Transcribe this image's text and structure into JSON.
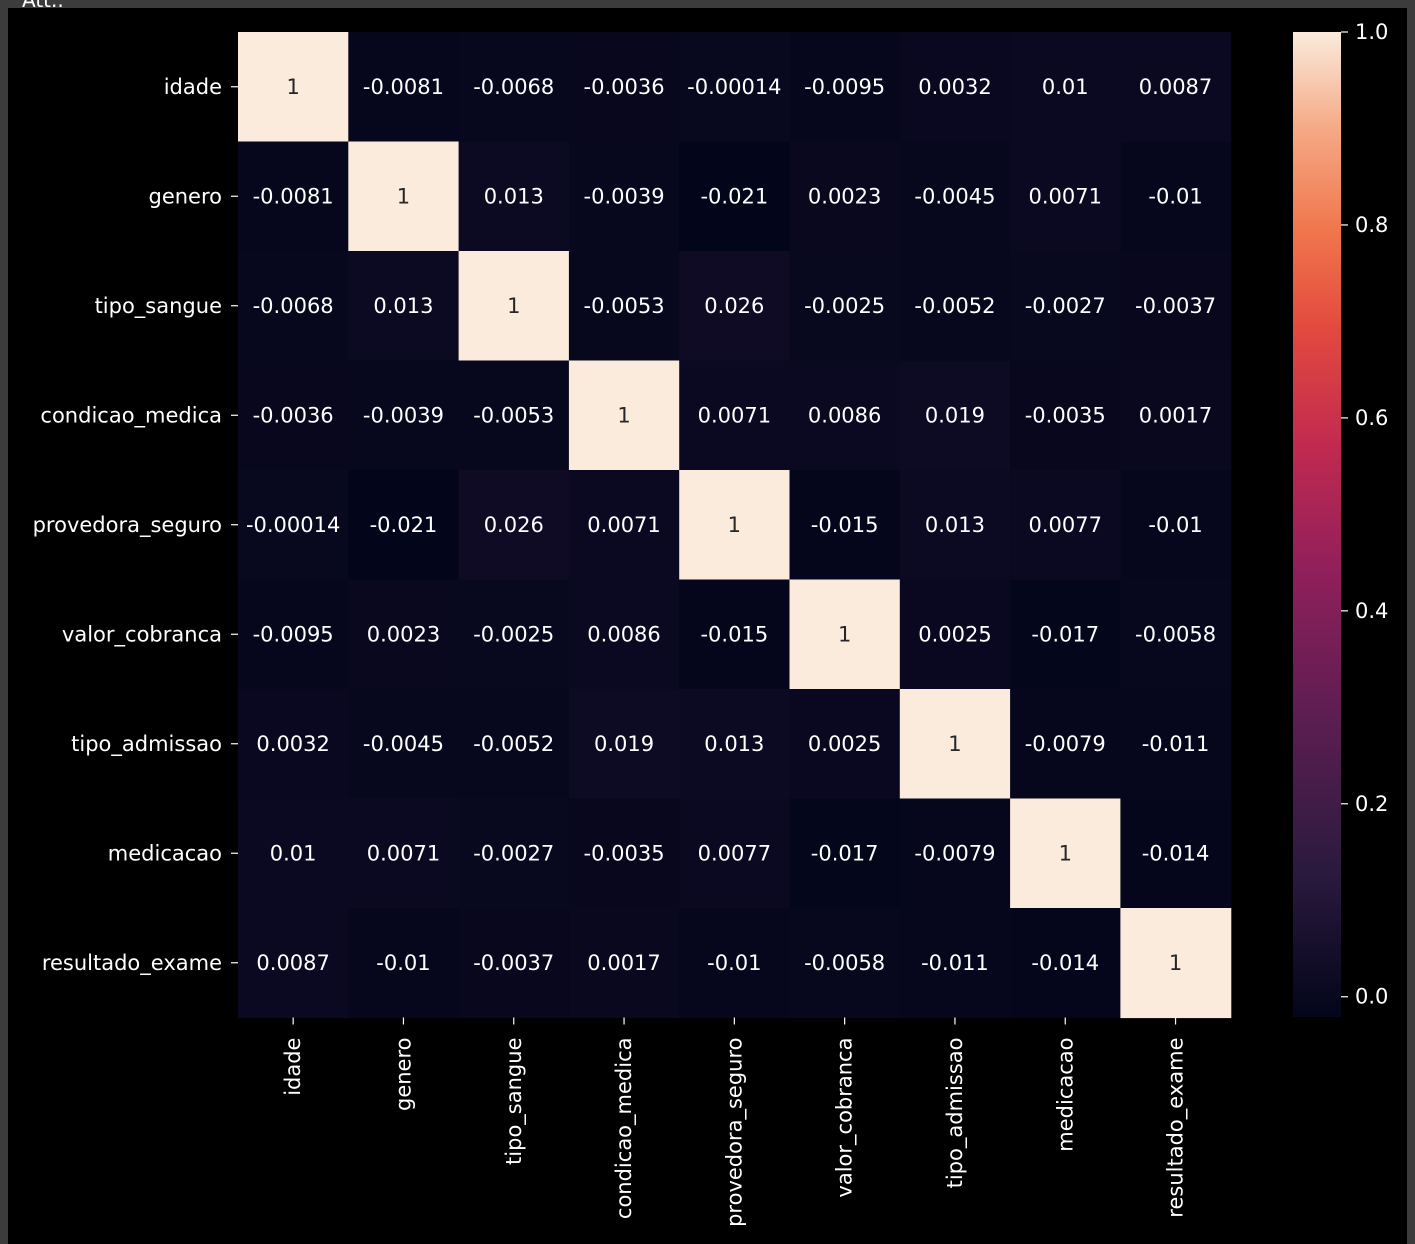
{
  "window": {
    "caption": "Att.."
  },
  "chart_data": {
    "type": "heatmap",
    "title": "",
    "xlabel": "",
    "ylabel": "",
    "x_labels": [
      "idade",
      "genero",
      "tipo_sangue",
      "condicao_medica",
      "provedora_seguro",
      "valor_cobranca",
      "tipo_admissao",
      "medicacao",
      "resultado_exame"
    ],
    "y_labels": [
      "idade",
      "genero",
      "tipo_sangue",
      "condicao_medica",
      "provedora_seguro",
      "valor_cobranca",
      "tipo_admissao",
      "medicacao",
      "resultado_exame"
    ],
    "matrix": [
      [
        1,
        -0.0081,
        -0.0068,
        -0.0036,
        -0.00014,
        -0.0095,
        0.0032,
        0.01,
        0.0087
      ],
      [
        -0.0081,
        1,
        0.013,
        -0.0039,
        -0.021,
        0.0023,
        -0.0045,
        0.0071,
        -0.01
      ],
      [
        -0.0068,
        0.013,
        1,
        -0.0053,
        0.026,
        -0.0025,
        -0.0052,
        -0.0027,
        -0.0037
      ],
      [
        -0.0036,
        -0.0039,
        -0.0053,
        1,
        0.0071,
        0.0086,
        0.019,
        -0.0035,
        0.0017
      ],
      [
        -0.00014,
        -0.021,
        0.026,
        0.0071,
        1,
        -0.015,
        0.013,
        0.0077,
        -0.01
      ],
      [
        -0.0095,
        0.0023,
        -0.0025,
        0.0086,
        -0.015,
        1,
        0.0025,
        -0.017,
        -0.0058
      ],
      [
        0.0032,
        -0.0045,
        -0.0052,
        0.019,
        0.013,
        0.0025,
        1,
        -0.0079,
        -0.011
      ],
      [
        0.01,
        0.0071,
        -0.0027,
        -0.0035,
        0.0077,
        -0.017,
        -0.0079,
        1,
        -0.014
      ],
      [
        0.0087,
        -0.01,
        -0.0037,
        0.0017,
        -0.01,
        -0.0058,
        -0.011,
        -0.014,
        1
      ]
    ],
    "annotations": true,
    "colormap": "rocket",
    "colorbar": {
      "range": [
        -0.021,
        1.0
      ],
      "ticks": [
        0.0,
        0.2,
        0.4,
        0.6,
        0.8,
        1.0
      ],
      "tick_labels": [
        "0.0",
        "0.2",
        "0.4",
        "0.6",
        "0.8",
        "1.0"
      ]
    },
    "grid": false,
    "background": "#000000",
    "text_color": "#ffffff"
  }
}
